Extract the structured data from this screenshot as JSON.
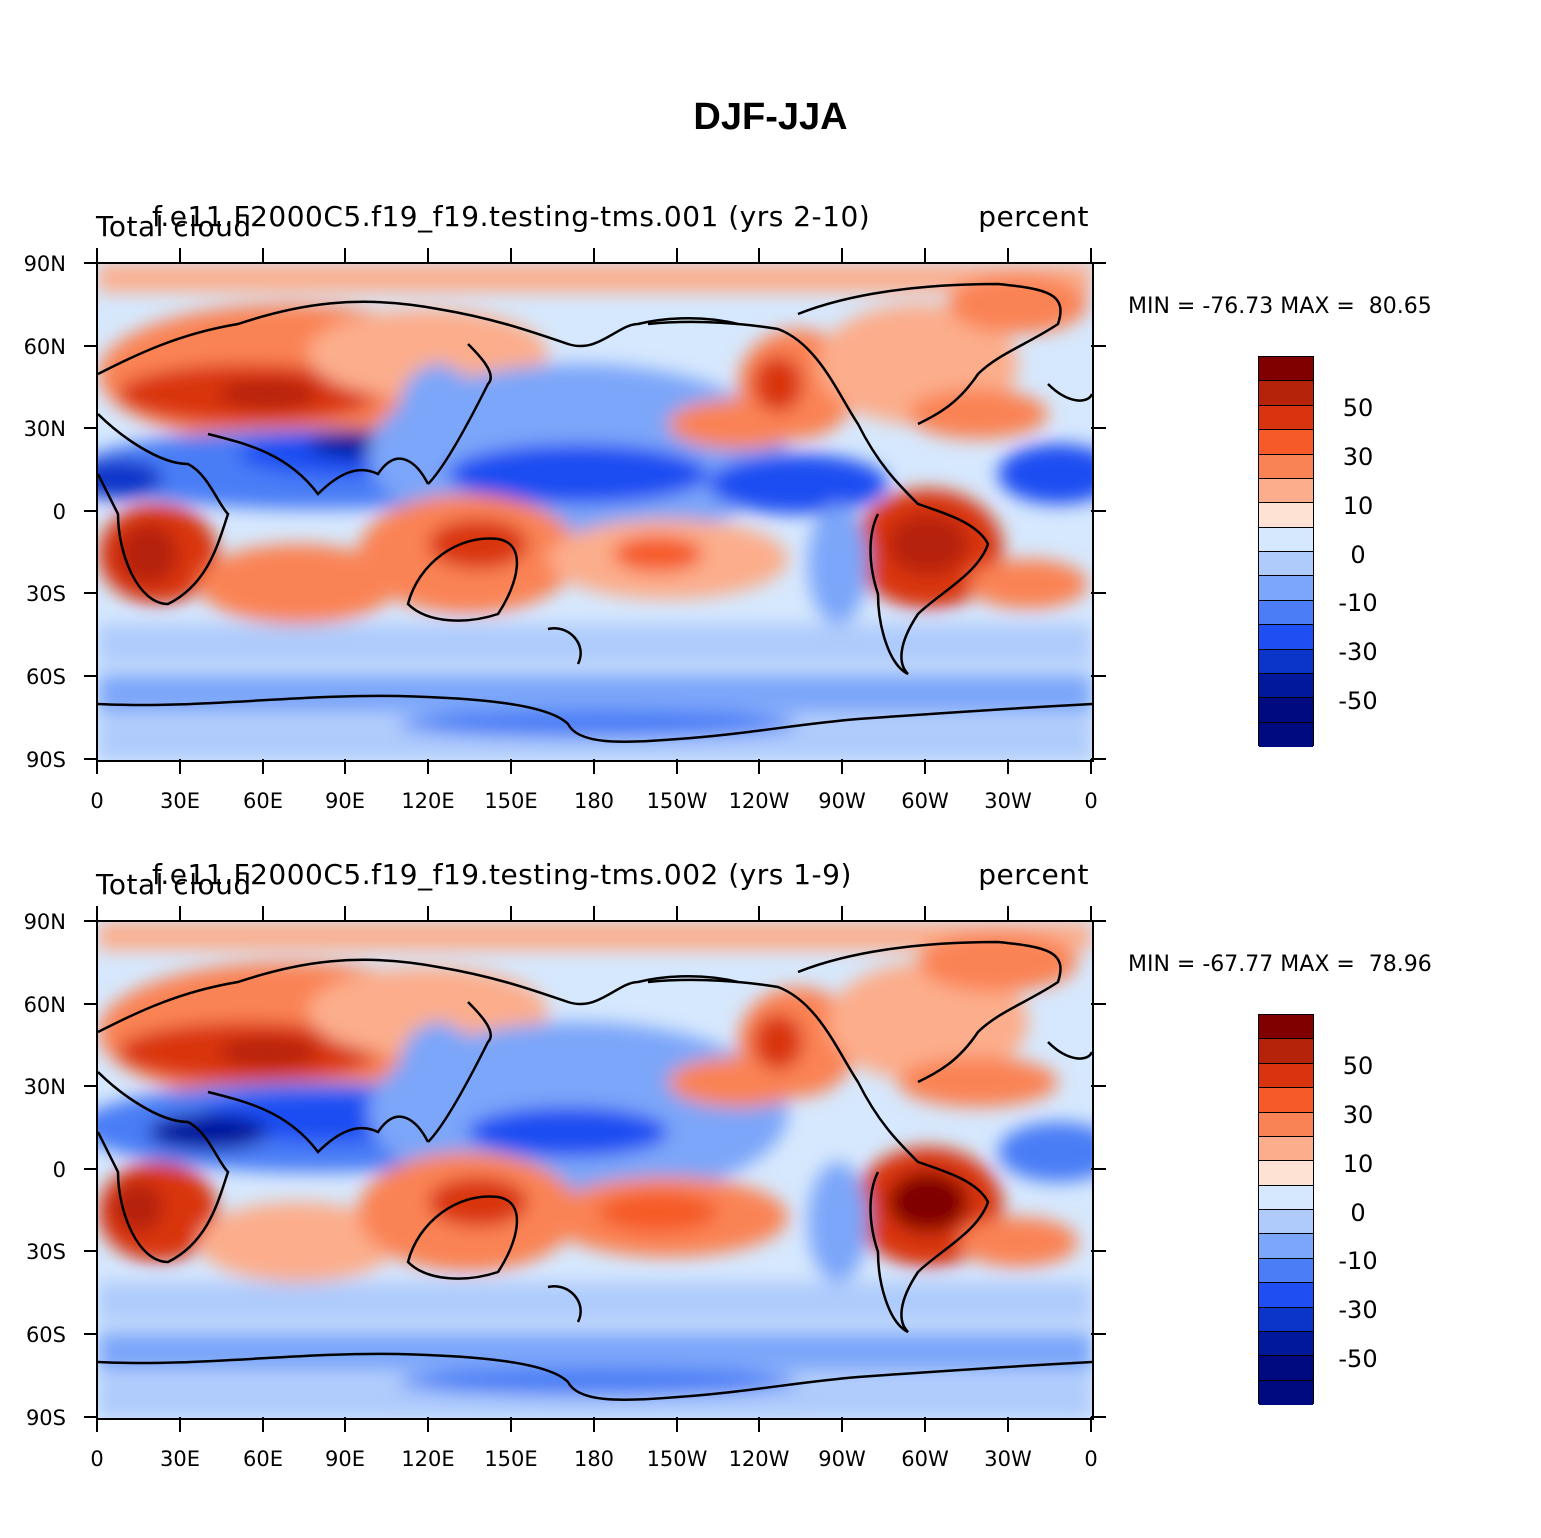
{
  "figure": {
    "title": "DJF-JJA"
  },
  "panels": [
    {
      "left_title": "Total cloud",
      "center_title": "f.e11.F2000C5.f19_f19.testing-tms.001 (yrs 2-10)",
      "right_title": "percent",
      "min_label": "MIN = -76.73",
      "max_label": "MAX =  80.65"
    },
    {
      "left_title": "Total cloud",
      "center_title": "f.e11.F2000C5.f19_f19.testing-tms.002 (yrs 1-9)",
      "right_title": "percent",
      "min_label": "MIN = -67.77",
      "max_label": "MAX =  78.96"
    }
  ],
  "axes": {
    "lat_labels": [
      "90N",
      "60N",
      "30N",
      "0",
      "30S",
      "60S",
      "90S"
    ],
    "lon_labels": [
      "0",
      "30E",
      "60E",
      "90E",
      "120E",
      "150E",
      "180",
      "150W",
      "120W",
      "90W",
      "60W",
      "30W",
      "0"
    ]
  },
  "colorbar": {
    "colors": [
      "#800000",
      "#b5230a",
      "#d93410",
      "#f55a28",
      "#fa8355",
      "#fcad8b",
      "#fee2d3",
      "#d6e8fd",
      "#aecbfc",
      "#7ba6f9",
      "#4a7df6",
      "#1f4ef2",
      "#0b34c9",
      "#00189b",
      "#000a80"
    ],
    "labels": [
      "50",
      "30",
      "10",
      "0",
      "-10",
      "-30",
      "-50"
    ]
  }
}
